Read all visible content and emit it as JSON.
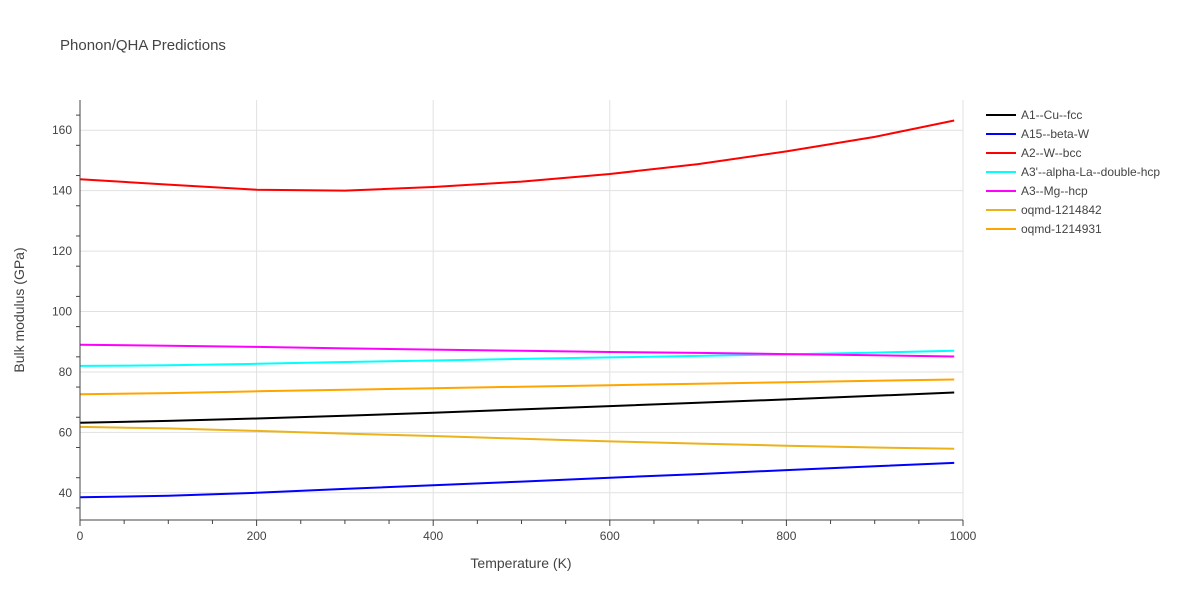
{
  "chart_data": {
    "type": "line",
    "title": "Phonon/QHA Predictions",
    "xlabel": "Temperature (K)",
    "ylabel": "Bulk modulus (GPa)",
    "xlim": [
      0,
      1000
    ],
    "ylim": [
      31,
      170
    ],
    "xticks": [
      0,
      200,
      400,
      600,
      800,
      1000
    ],
    "yticks": [
      40,
      60,
      80,
      100,
      120,
      140,
      160
    ],
    "grid": true,
    "legend_position": "right",
    "x": [
      0,
      100,
      200,
      300,
      400,
      500,
      600,
      700,
      800,
      900,
      990
    ],
    "series": [
      {
        "name": "A1--Cu--fcc",
        "color": "#000000",
        "values": [
          63.2,
          63.8,
          64.6,
          65.5,
          66.5,
          67.6,
          68.7,
          69.8,
          70.9,
          72.1,
          73.2
        ]
      },
      {
        "name": "A15--beta-W",
        "color": "#0000ff",
        "values": [
          38.5,
          39.0,
          40.0,
          41.3,
          42.5,
          43.7,
          45.0,
          46.2,
          47.5,
          48.8,
          49.9
        ]
      },
      {
        "name": "A2--W--bcc",
        "color": "#ff0000",
        "values": [
          143.8,
          142.0,
          140.3,
          140.0,
          141.2,
          143.0,
          145.5,
          148.8,
          153.0,
          157.8,
          163.2
        ]
      },
      {
        "name": "A3'--alpha-La--double-hcp",
        "color": "#00ffff",
        "values": [
          82.0,
          82.2,
          82.7,
          83.3,
          83.8,
          84.3,
          84.8,
          85.3,
          85.8,
          86.4,
          87.0
        ]
      },
      {
        "name": "A3--Mg--hcp",
        "color": "#ff00ff",
        "values": [
          89.0,
          88.7,
          88.3,
          87.8,
          87.4,
          87.0,
          86.6,
          86.3,
          85.9,
          85.5,
          85.1
        ]
      },
      {
        "name": "oqmd-1214842",
        "color": "#ebb21a",
        "values": [
          61.8,
          61.3,
          60.5,
          59.6,
          58.8,
          57.9,
          57.0,
          56.3,
          55.6,
          55.0,
          54.6
        ]
      },
      {
        "name": "oqmd-1214931",
        "color": "#ffa500",
        "values": [
          72.6,
          73.0,
          73.6,
          74.1,
          74.6,
          75.1,
          75.6,
          76.1,
          76.6,
          77.1,
          77.5
        ]
      }
    ]
  }
}
